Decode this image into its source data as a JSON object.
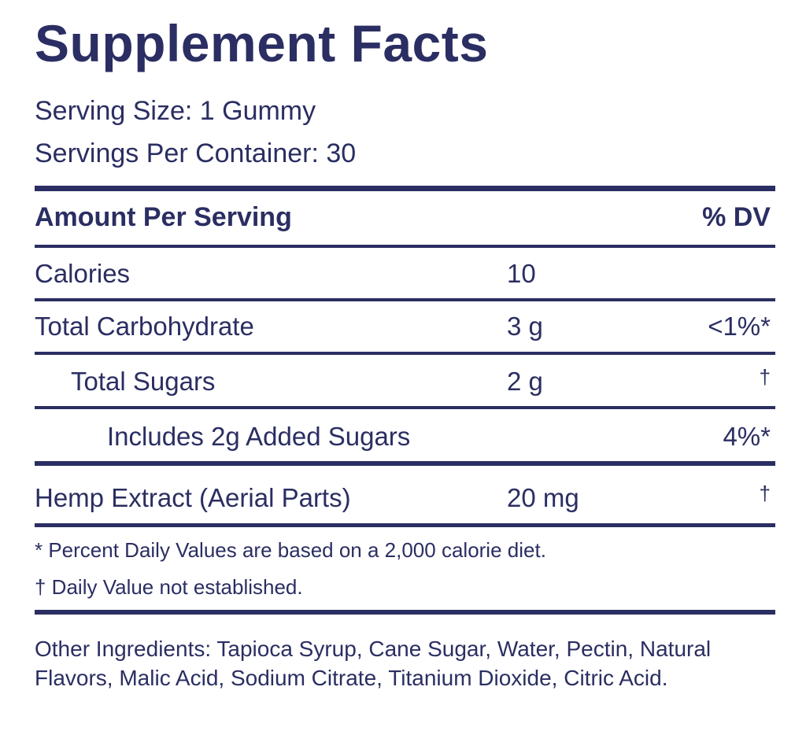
{
  "label": {
    "title": "Supplement Facts",
    "serving_size": "Serving Size: 1 Gummy",
    "servings_per_container": "Servings Per Container: 30",
    "header": {
      "amount": "Amount Per Serving",
      "dv": "% DV"
    },
    "rows": [
      {
        "name": "Calories",
        "amount": "10",
        "dv": ""
      },
      {
        "name": "Total Carbohydrate",
        "amount": "3 g",
        "dv": "<1%*"
      },
      {
        "name": "Total Sugars",
        "amount": "2 g",
        "dv": "†"
      },
      {
        "name": "Includes 2g Added Sugars",
        "amount": "",
        "dv": "4%*"
      },
      {
        "name": "Hemp Extract (Aerial Parts)",
        "amount": "20 mg",
        "dv": "†"
      }
    ],
    "footnotes": [
      "* Percent Daily Values are based on a 2,000 calorie diet.",
      "† Daily Value not established."
    ],
    "ingredients": "Other Ingredients: Tapioca Syrup, Cane Sugar, Water, Pectin, Natural Flavors, Malic Acid, Sodium Citrate, Titanium Dioxide, Citric Acid."
  },
  "colors": {
    "ink": "#2b2e62",
    "background": "#ffffff"
  }
}
